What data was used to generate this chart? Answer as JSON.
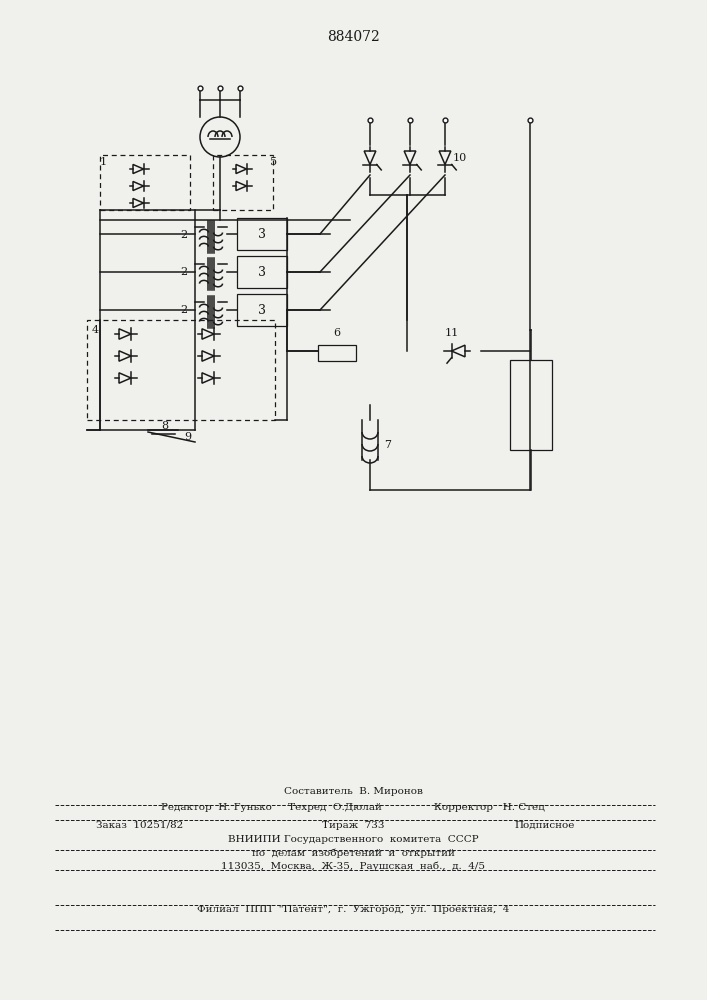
{
  "title": "884072",
  "bg_color": "#f0f0ec",
  "line_color": "#1a1a1a",
  "footer": {
    "line1": "Составитель  В. Миронов",
    "line2": "Редактор  Н. Гунько     Техред  О.Дюлай                Корректор   Н. Стец",
    "line3": "Заказ  10251/82           Тираж  733                   Подписное",
    "line4": "ВНИИПИ Государственного  комитета  СССР",
    "line5": "по  делам  изобретений  и  открытий",
    "line6": "113035,  Москва,  Ж-35,  Раушская  наб.,  д.  4/5",
    "line7": "Филиал  ППП  \"Патент\",  г.  Ужгород,  ул.  Проектная,  4"
  }
}
